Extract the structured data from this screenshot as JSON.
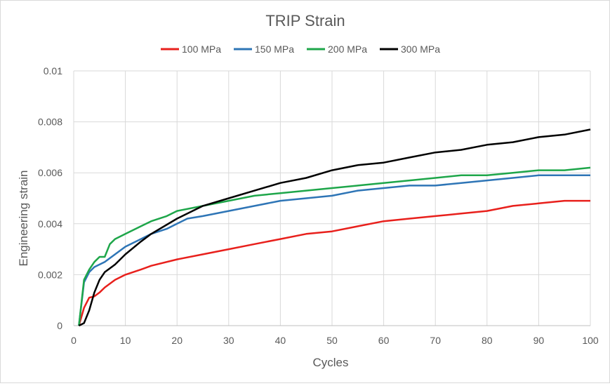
{
  "chart_data": {
    "type": "line",
    "title": "TRIP Strain",
    "xlabel": "Cycles",
    "ylabel": "Engineering strain",
    "xlim": [
      0,
      100
    ],
    "ylim": [
      0,
      0.01
    ],
    "x_ticks": [
      0,
      10,
      20,
      30,
      40,
      50,
      60,
      70,
      80,
      90,
      100
    ],
    "y_ticks": [
      0,
      0.002,
      0.004,
      0.006,
      0.008,
      0.01
    ],
    "y_tick_labels": [
      "0",
      "0.002",
      "0.004",
      "0.006",
      "0.008",
      "0.01"
    ],
    "grid": true,
    "legend_position": "top",
    "series": [
      {
        "name": "100 MPa",
        "color": "#e8201c",
        "x": [
          1,
          2,
          3,
          4,
          5,
          6,
          8,
          10,
          13,
          15,
          20,
          25,
          30,
          35,
          40,
          45,
          50,
          55,
          60,
          65,
          70,
          75,
          80,
          85,
          90,
          95,
          100
        ],
        "y": [
          0,
          0.0007,
          0.0011,
          0.00115,
          0.0013,
          0.0015,
          0.0018,
          0.002,
          0.0022,
          0.00235,
          0.0026,
          0.0028,
          0.003,
          0.0032,
          0.0034,
          0.0036,
          0.0037,
          0.0039,
          0.0041,
          0.0042,
          0.0043,
          0.0044,
          0.0045,
          0.0047,
          0.0048,
          0.0049,
          0.0049
        ]
      },
      {
        "name": "150 MPa",
        "color": "#2e75b6",
        "x": [
          1,
          2,
          3,
          4,
          5,
          6,
          8,
          10,
          13,
          15,
          18,
          20,
          22,
          25,
          30,
          35,
          40,
          45,
          50,
          55,
          60,
          65,
          70,
          75,
          80,
          85,
          90,
          95,
          100
        ],
        "y": [
          0,
          0.0017,
          0.0021,
          0.0023,
          0.0024,
          0.0025,
          0.0028,
          0.0031,
          0.0034,
          0.0036,
          0.0038,
          0.004,
          0.0042,
          0.0043,
          0.0045,
          0.0047,
          0.0049,
          0.005,
          0.0051,
          0.0053,
          0.0054,
          0.0055,
          0.0055,
          0.0056,
          0.0057,
          0.0058,
          0.0059,
          0.0059,
          0.0059
        ]
      },
      {
        "name": "200 MPa",
        "color": "#1ea64a",
        "x": [
          1,
          2,
          3,
          4,
          5,
          6,
          7,
          8,
          10,
          13,
          15,
          18,
          20,
          25,
          30,
          35,
          40,
          45,
          50,
          55,
          60,
          65,
          70,
          75,
          80,
          85,
          90,
          95,
          100
        ],
        "y": [
          0,
          0.0018,
          0.0022,
          0.0025,
          0.0027,
          0.0027,
          0.0032,
          0.0034,
          0.0036,
          0.0039,
          0.0041,
          0.0043,
          0.0045,
          0.0047,
          0.0049,
          0.0051,
          0.0052,
          0.0053,
          0.0054,
          0.0055,
          0.0056,
          0.0057,
          0.0058,
          0.0059,
          0.0059,
          0.006,
          0.0061,
          0.0061,
          0.0062
        ]
      },
      {
        "name": "300 MPa",
        "color": "#000000",
        "x": [
          1,
          2,
          3,
          4,
          5,
          6,
          8,
          10,
          13,
          15,
          20,
          25,
          30,
          35,
          40,
          45,
          50,
          55,
          60,
          65,
          70,
          75,
          80,
          85,
          90,
          95,
          100
        ],
        "y": [
          0,
          0.0001,
          0.0006,
          0.0013,
          0.0018,
          0.0021,
          0.0024,
          0.0028,
          0.0033,
          0.0036,
          0.0042,
          0.0047,
          0.005,
          0.0053,
          0.0056,
          0.0058,
          0.0061,
          0.0063,
          0.0064,
          0.0066,
          0.0068,
          0.0069,
          0.0071,
          0.0072,
          0.0074,
          0.0075,
          0.0077
        ]
      }
    ]
  }
}
